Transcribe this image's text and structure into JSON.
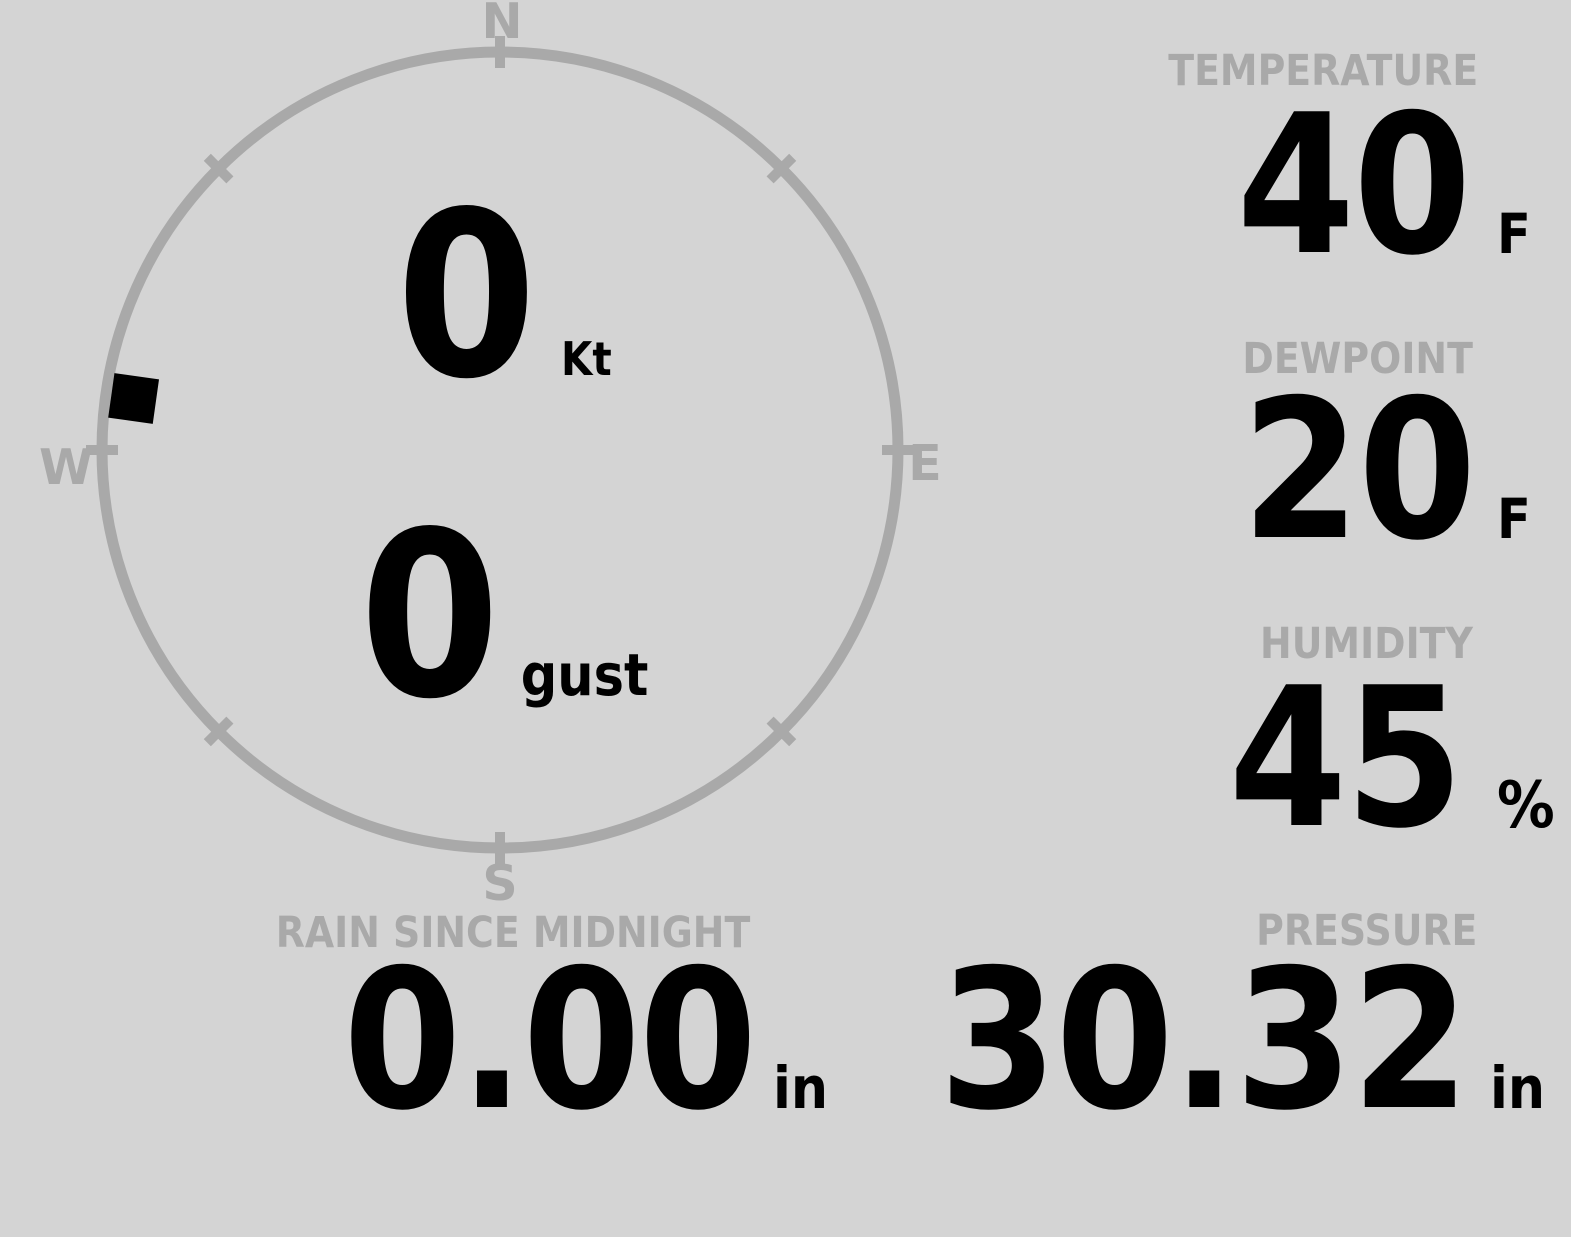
{
  "colors": {
    "background": "#d4d4d4",
    "muted": "#a9a9a9",
    "ink": "#000000"
  },
  "wind": {
    "compass_points": {
      "north": "N",
      "east": "E",
      "south": "S",
      "west": "W"
    },
    "direction_degrees": 278,
    "speed": {
      "value": "0",
      "unit": "Kt"
    },
    "gust": {
      "value": "0",
      "unit": "gust"
    }
  },
  "panels": {
    "temperature": {
      "label": "TEMPERATURE",
      "value": "40",
      "unit": "F"
    },
    "dewpoint": {
      "label": "DEWPOINT",
      "value": "20",
      "unit": "F"
    },
    "humidity": {
      "label": "HUMIDITY",
      "value": "45",
      "unit": "%"
    },
    "rain_since_midnight": {
      "label": "RAIN SINCE MIDNIGHT",
      "value": "0.00",
      "unit": "in"
    },
    "pressure": {
      "label": "PRESSURE",
      "value": "30.32",
      "unit": "in"
    }
  }
}
